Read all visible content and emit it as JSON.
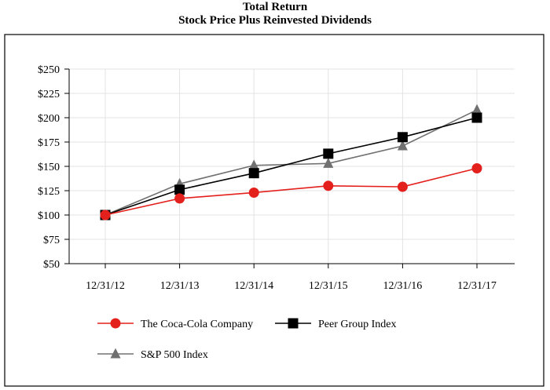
{
  "chart_data": {
    "type": "line",
    "title": "Total Return",
    "subtitle": "Stock Price Plus Reinvested Dividends",
    "categories": [
      "12/31/12",
      "12/31/13",
      "12/31/14",
      "12/31/15",
      "12/31/16",
      "12/31/17"
    ],
    "y_ticks": [
      "$50",
      "$75",
      "$100",
      "$125",
      "$150",
      "$175",
      "$200",
      "$225",
      "$250"
    ],
    "y_tick_values": [
      50,
      75,
      100,
      125,
      150,
      175,
      200,
      225,
      250
    ],
    "ylim": [
      50,
      250
    ],
    "grid": true,
    "legend_position": "bottom",
    "series": [
      {
        "name": "The Coca-Cola Company",
        "color": "#e4201c",
        "marker": "circle",
        "values": [
          100,
          117,
          123,
          130,
          129,
          148
        ]
      },
      {
        "name": "Peer Group Index",
        "color": "#000000",
        "marker": "square",
        "values": [
          100,
          126,
          143,
          163,
          180,
          200
        ]
      },
      {
        "name": "S&P 500 Index",
        "color": "#707070",
        "marker": "triangle",
        "values": [
          100,
          132,
          151,
          153,
          171,
          208
        ]
      }
    ]
  }
}
